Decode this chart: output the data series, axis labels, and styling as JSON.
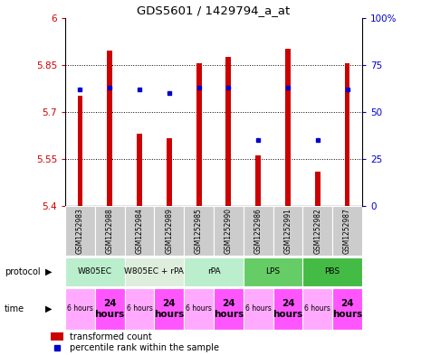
{
  "title": "GDS5601 / 1429794_a_at",
  "samples": [
    "GSM1252983",
    "GSM1252988",
    "GSM1252984",
    "GSM1252989",
    "GSM1252985",
    "GSM1252990",
    "GSM1252986",
    "GSM1252991",
    "GSM1252982",
    "GSM1252987"
  ],
  "bar_values": [
    5.75,
    5.895,
    5.63,
    5.615,
    5.855,
    5.875,
    5.56,
    5.9,
    5.51,
    5.855
  ],
  "percentile_values": [
    0.62,
    0.63,
    0.62,
    0.6,
    0.63,
    0.63,
    0.35,
    0.63,
    0.35,
    0.62
  ],
  "ymin": 5.4,
  "ymax": 6.0,
  "yticks": [
    5.4,
    5.55,
    5.7,
    5.85,
    6.0
  ],
  "ytick_labels": [
    "5.4",
    "5.55",
    "5.7",
    "5.85",
    "6"
  ],
  "right_yticks": [
    0.0,
    0.25,
    0.5,
    0.75,
    1.0
  ],
  "right_ytick_labels": [
    "0",
    "25",
    "50",
    "75",
    "100%"
  ],
  "bar_color": "#CC0000",
  "dot_color": "#0000CC",
  "protocols": [
    {
      "label": "W805EC",
      "start": 0,
      "end": 2,
      "color": "#BBEECC"
    },
    {
      "label": "W805EC + rPA",
      "start": 2,
      "end": 4,
      "color": "#DDEEDD"
    },
    {
      "label": "rPA",
      "start": 4,
      "end": 6,
      "color": "#BBEECC"
    },
    {
      "label": "LPS",
      "start": 6,
      "end": 8,
      "color": "#66CC66"
    },
    {
      "label": "PBS",
      "start": 8,
      "end": 10,
      "color": "#44BB44"
    }
  ],
  "times": [
    {
      "label": "6 hours",
      "start": 0,
      "end": 1,
      "big": false
    },
    {
      "label": "24\nhours",
      "start": 1,
      "end": 2,
      "big": true
    },
    {
      "label": "6 hours",
      "start": 2,
      "end": 3,
      "big": false
    },
    {
      "label": "24\nhours",
      "start": 3,
      "end": 4,
      "big": true
    },
    {
      "label": "6 hours",
      "start": 4,
      "end": 5,
      "big": false
    },
    {
      "label": "24\nhours",
      "start": 5,
      "end": 6,
      "big": true
    },
    {
      "label": "6 hours",
      "start": 6,
      "end": 7,
      "big": false
    },
    {
      "label": "24\nhours",
      "start": 7,
      "end": 8,
      "big": true
    },
    {
      "label": "6 hours",
      "start": 8,
      "end": 9,
      "big": false
    },
    {
      "label": "24\nhours",
      "start": 9,
      "end": 10,
      "big": true
    }
  ],
  "time_color_small": "#FFAAFF",
  "time_color_big": "#FF55FF",
  "sample_bg": "#CCCCCC",
  "left_label_color": "#CC0000",
  "right_label_color": "#0000CC",
  "bar_width": 0.18
}
